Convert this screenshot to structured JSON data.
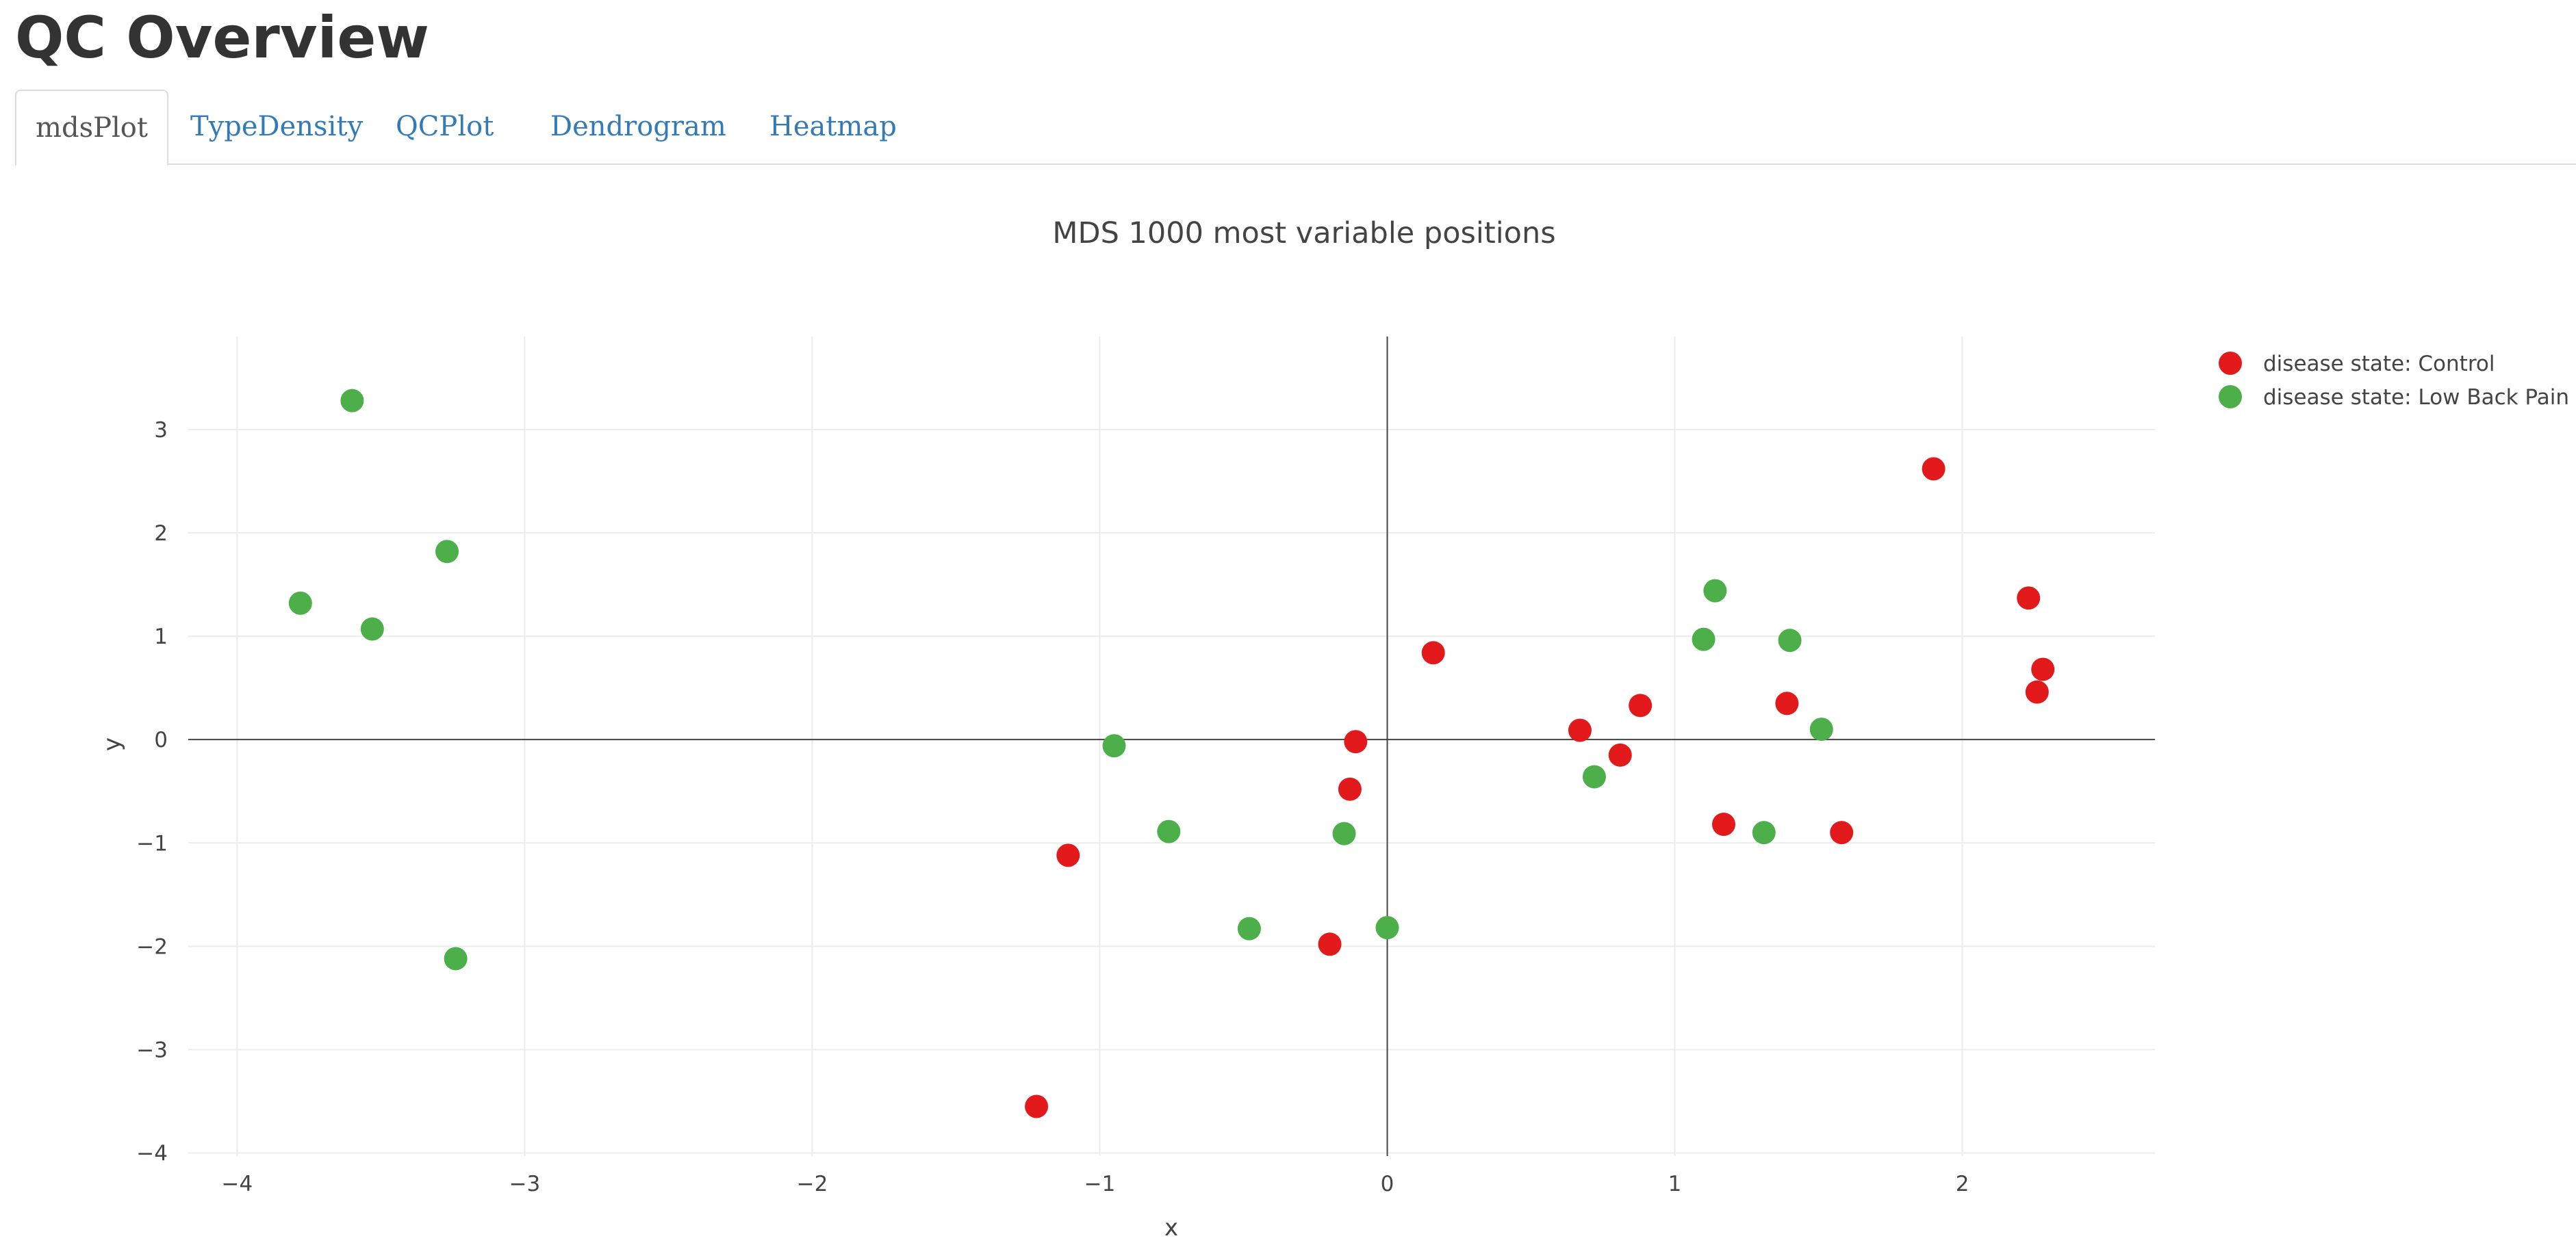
{
  "page": {
    "title": "QC Overview"
  },
  "tabs": [
    {
      "label": "mdsPlot",
      "active": true
    },
    {
      "label": "TypeDensity",
      "active": false
    },
    {
      "label": "QCPlot",
      "active": false
    },
    {
      "label": "Dendrogram",
      "active": false
    },
    {
      "label": "Heatmap",
      "active": false
    }
  ],
  "colors": {
    "tab_link": "#337ab7",
    "tab_active_text": "#555555",
    "grid": "#ececec",
    "zero_line": "#444444"
  },
  "chart_data": {
    "type": "scatter",
    "title": "MDS 1000 most variable positions",
    "xlabel": "x",
    "ylabel": "y",
    "xlim": [
      -4.17,
      2.67
    ],
    "ylim": [
      -4.03,
      3.9
    ],
    "x_ticks": [
      -4,
      -3,
      -2,
      -1,
      0,
      1,
      2
    ],
    "y_ticks": [
      -4,
      -3,
      -2,
      -1,
      0,
      1,
      2,
      3
    ],
    "grid": true,
    "zero_lines": true,
    "legend_position": "top-right",
    "series": [
      {
        "name": "disease state: Control",
        "color": "#e31a1c",
        "points": [
          [
            -1.22,
            -3.55
          ],
          [
            -1.11,
            -1.12
          ],
          [
            -0.2,
            -1.98
          ],
          [
            -0.13,
            -0.48
          ],
          [
            -0.11,
            -0.02
          ],
          [
            0.16,
            0.84
          ],
          [
            0.67,
            0.09
          ],
          [
            0.81,
            -0.15
          ],
          [
            0.88,
            0.33
          ],
          [
            1.17,
            -0.82
          ],
          [
            1.39,
            0.35
          ],
          [
            1.58,
            -0.9
          ],
          [
            1.9,
            2.62
          ],
          [
            2.23,
            1.37
          ],
          [
            2.26,
            0.46
          ],
          [
            2.28,
            0.68
          ]
        ]
      },
      {
        "name": "disease state: Low Back Pain",
        "color": "#4daf4a",
        "points": [
          [
            -3.78,
            1.32
          ],
          [
            -3.6,
            3.28
          ],
          [
            -3.53,
            1.07
          ],
          [
            -3.27,
            1.82
          ],
          [
            -3.24,
            -2.12
          ],
          [
            -0.95,
            -0.06
          ],
          [
            -0.76,
            -0.89
          ],
          [
            -0.48,
            -1.83
          ],
          [
            -0.15,
            -0.91
          ],
          [
            0.0,
            -1.82
          ],
          [
            0.72,
            -0.36
          ],
          [
            1.1,
            0.97
          ],
          [
            1.14,
            1.44
          ],
          [
            1.31,
            -0.9
          ],
          [
            1.4,
            0.96
          ],
          [
            1.51,
            0.1
          ]
        ]
      }
    ]
  }
}
